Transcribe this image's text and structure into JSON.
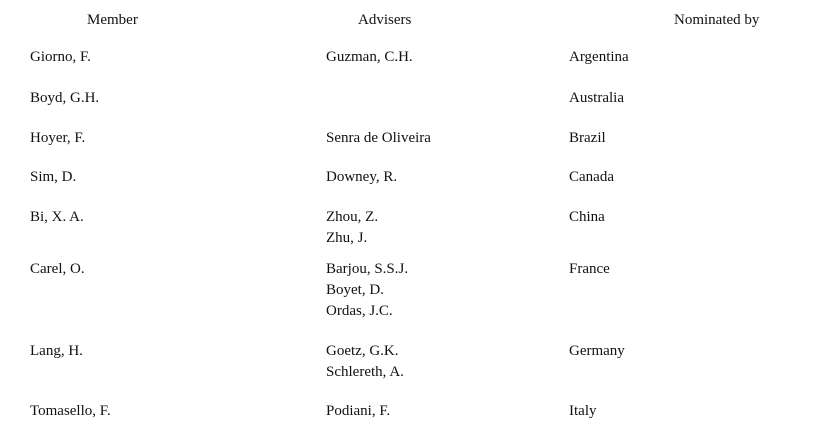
{
  "headers": {
    "member": "Member",
    "advisers": "Advisers",
    "nominated_by": "Nominated by"
  },
  "rows": [
    {
      "member": "Giorno, F.",
      "advisers": [
        "Guzman, C.H."
      ],
      "nominated_by": "Argentina"
    },
    {
      "member": "Boyd, G.H.",
      "advisers": [],
      "nominated_by": "Australia"
    },
    {
      "member": "Hoyer, F.",
      "advisers": [
        "Senra de Oliveira"
      ],
      "nominated_by": "Brazil"
    },
    {
      "member": "Sim, D.",
      "advisers": [
        "Downey, R."
      ],
      "nominated_by": "Canada"
    },
    {
      "member": "Bi, X. A.",
      "advisers": [
        "Zhou, Z.",
        "Zhu, J."
      ],
      "nominated_by": "China"
    },
    {
      "member": "Carel, O.",
      "advisers": [
        "Barjou, S.S.J.",
        "Boyet, D.",
        "Ordas, J.C."
      ],
      "nominated_by": "France"
    },
    {
      "member": "Lang, H.",
      "advisers": [
        "Goetz, G.K.",
        "Schlereth, A."
      ],
      "nominated_by": "Germany"
    },
    {
      "member": "Tomasello, F.",
      "advisers": [
        "Podiani, F."
      ],
      "nominated_by": "Italy"
    }
  ]
}
